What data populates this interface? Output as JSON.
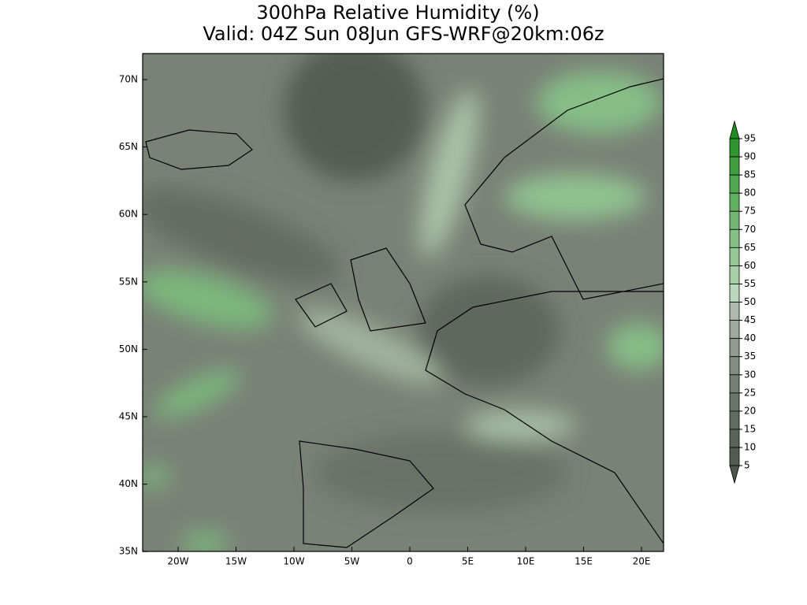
{
  "title": "300hPa Relative Humidity (%)",
  "subtitle": "Valid: 04Z Sun 08Jun GFS-WRF@20km:06z",
  "map": {
    "lat_labels": [
      "70N",
      "65N",
      "60N",
      "55N",
      "50N",
      "45N",
      "40N",
      "35N"
    ],
    "lon_labels": [
      "20W",
      "15W",
      "10W",
      "5W",
      "0",
      "5E",
      "10E",
      "15E",
      "20E"
    ]
  },
  "colorbar": {
    "levels": [
      95,
      90,
      85,
      80,
      75,
      70,
      65,
      60,
      55,
      50,
      45,
      40,
      35,
      30,
      25,
      20,
      15,
      10,
      5
    ],
    "colors": [
      "#1e8c1e",
      "#2f962f",
      "#3f9f3f",
      "#50a850",
      "#61b061",
      "#72b772",
      "#84bf84",
      "#96c796",
      "#a9cfa9",
      "#bcd8bc",
      "#b0b8ae",
      "#a0a89e",
      "#919a8f",
      "#838c81",
      "#767f74",
      "#6b7469",
      "#626b60",
      "#5a6358",
      "#535c52",
      "#4d564c"
    ]
  }
}
